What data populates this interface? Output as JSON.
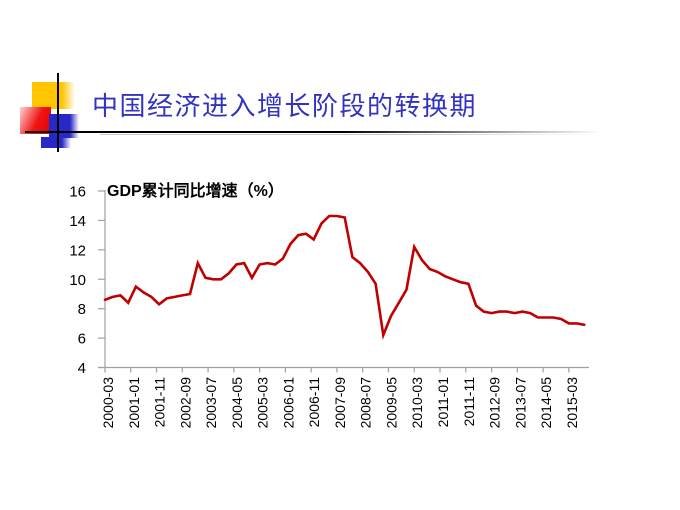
{
  "slide": {
    "title": "中国经济进入增长阶段的转换期",
    "title_color": "#3333C0",
    "background": "#FFFFFF"
  },
  "decor": {
    "yellow_square": "#FFC500",
    "red_square": "#DD0000",
    "red_square_light": "#FFD0D0",
    "blue_square": "#2828C8",
    "crosshair_line": "#000000"
  },
  "chart_data": {
    "type": "line",
    "title": "GDP累计同比增速（%）",
    "xlabel": "",
    "ylabel": "",
    "ylim": [
      4,
      16
    ],
    "y_ticks": [
      16,
      14,
      12,
      10,
      8,
      6,
      4
    ],
    "x_tick_labels": [
      "2000-03",
      "2001-01",
      "2001-11",
      "2002-09",
      "2003-07",
      "2004-05",
      "2005-03",
      "2006-01",
      "2006-11",
      "2007-09",
      "2008-07",
      "2009-05",
      "2010-03",
      "2011-01",
      "2011-11",
      "2012-09",
      "2013-07",
      "2014-05",
      "2015-03"
    ],
    "x_tick_interval_months": 10,
    "grid": false,
    "legend_position": "none",
    "line_color": "#C00000",
    "axis_color": "#A0A0A0",
    "series": [
      {
        "name": "GDP累计同比增速(%)",
        "dates": [
          "2000-03",
          "2000-06",
          "2000-09",
          "2000-12",
          "2001-03",
          "2001-06",
          "2001-09",
          "2001-12",
          "2002-03",
          "2002-06",
          "2002-09",
          "2002-12",
          "2003-03",
          "2003-06",
          "2003-09",
          "2003-12",
          "2004-03",
          "2004-06",
          "2004-09",
          "2004-12",
          "2005-03",
          "2005-06",
          "2005-09",
          "2005-12",
          "2006-03",
          "2006-06",
          "2006-09",
          "2006-12",
          "2007-03",
          "2007-06",
          "2007-09",
          "2007-12",
          "2008-03",
          "2008-06",
          "2008-09",
          "2008-12",
          "2009-03",
          "2009-06",
          "2009-09",
          "2009-12",
          "2010-03",
          "2010-06",
          "2010-09",
          "2010-12",
          "2011-03",
          "2011-06",
          "2011-09",
          "2011-12",
          "2012-03",
          "2012-06",
          "2012-09",
          "2012-12",
          "2013-03",
          "2013-06",
          "2013-09",
          "2013-12",
          "2014-03",
          "2014-06",
          "2014-09",
          "2014-12",
          "2015-03",
          "2015-06",
          "2015-09"
        ],
        "values": [
          8.6,
          8.8,
          8.9,
          8.4,
          9.5,
          9.1,
          8.8,
          8.3,
          8.7,
          8.8,
          8.9,
          9.0,
          11.1,
          10.1,
          10.0,
          10.0,
          10.4,
          11.0,
          11.1,
          10.1,
          11.0,
          11.1,
          11.0,
          11.4,
          12.4,
          13.0,
          13.1,
          12.7,
          13.8,
          14.3,
          14.3,
          14.2,
          11.5,
          11.1,
          10.5,
          9.7,
          6.2,
          7.5,
          8.4,
          9.3,
          12.2,
          11.3,
          10.7,
          10.5,
          10.2,
          10.0,
          9.8,
          9.7,
          8.2,
          7.8,
          7.7,
          7.8,
          7.8,
          7.7,
          7.8,
          7.7,
          7.4,
          7.4,
          7.4,
          7.3,
          7.0,
          7.0,
          6.9
        ]
      }
    ]
  }
}
